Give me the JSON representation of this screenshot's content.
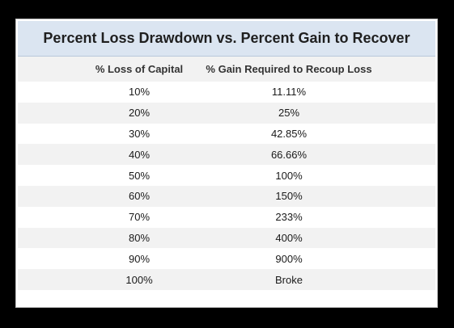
{
  "title": "Percent Loss Drawdown vs. Percent Gain to Recover",
  "chart_data": {
    "type": "table",
    "title": "Percent Loss Drawdown vs. Percent Gain to Recover",
    "columns": [
      "% Loss of Capital",
      "% Gain Required to Recoup Loss"
    ],
    "rows": [
      [
        "10%",
        "11.11%"
      ],
      [
        "20%",
        "25%"
      ],
      [
        "30%",
        "42.85%"
      ],
      [
        "40%",
        "66.66%"
      ],
      [
        "50%",
        "100%"
      ],
      [
        "60%",
        "150%"
      ],
      [
        "70%",
        "233%"
      ],
      [
        "80%",
        "400%"
      ],
      [
        "90%",
        "900%"
      ],
      [
        "100%",
        "Broke"
      ]
    ],
    "shaded_color": "#f2f2f2",
    "header_color": "#dbe5f1"
  }
}
